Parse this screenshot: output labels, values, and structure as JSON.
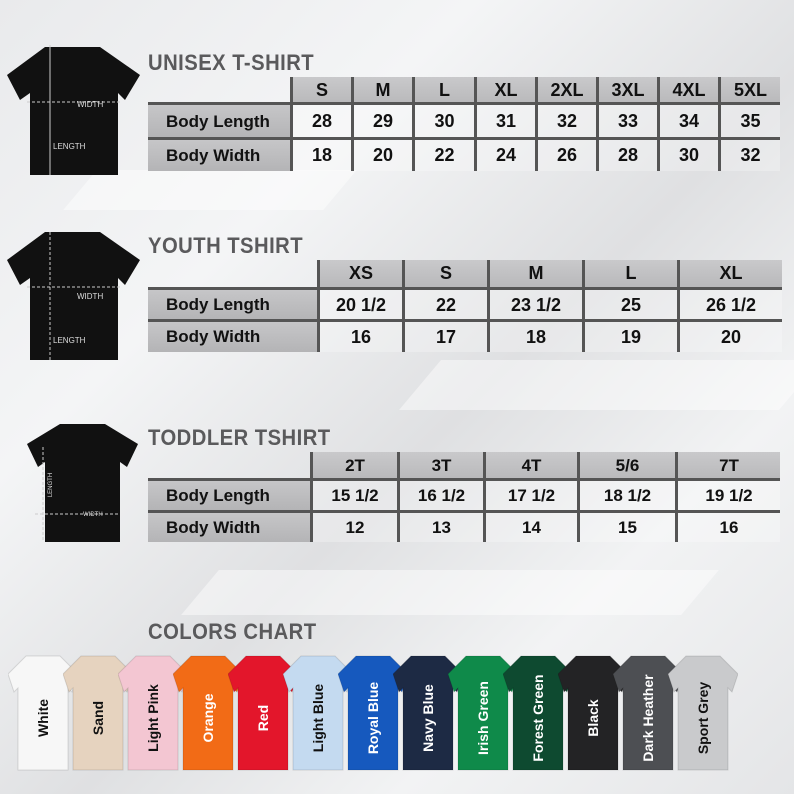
{
  "unisex": {
    "title": "UNISEX T-SHIRT",
    "diagram_labels": {
      "width": "WIDTH",
      "length": "LENGTH"
    },
    "sizes": [
      "S",
      "M",
      "L",
      "XL",
      "2XL",
      "3XL",
      "4XL",
      "5XL"
    ],
    "rows": [
      {
        "label": "Body Length",
        "values": [
          "28",
          "29",
          "30",
          "31",
          "32",
          "33",
          "34",
          "35"
        ]
      },
      {
        "label": "Body Width",
        "values": [
          "18",
          "20",
          "22",
          "24",
          "26",
          "28",
          "30",
          "32"
        ]
      }
    ]
  },
  "youth": {
    "title": "YOUTH TSHIRT",
    "diagram_labels": {
      "width": "WIDTH",
      "length": "LENGTH"
    },
    "sizes": [
      "XS",
      "S",
      "M",
      "L",
      "XL"
    ],
    "rows": [
      {
        "label": "Body Length",
        "values": [
          "20 1/2",
          "22",
          "23 1/2",
          "25",
          "26 1/2"
        ]
      },
      {
        "label": "Body Width",
        "values": [
          "16",
          "17",
          "18",
          "19",
          "20"
        ]
      }
    ]
  },
  "toddler": {
    "title": "TODDLER TSHIRT",
    "diagram_labels": {
      "width": "WIDTH",
      "length": "LENGTH"
    },
    "sizes": [
      "2T",
      "3T",
      "4T",
      "5/6",
      "7T"
    ],
    "rows": [
      {
        "label": "Body Length",
        "values": [
          "15 1/2",
          "16 1/2",
          "17 1/2",
          "18 1/2",
          "19 1/2"
        ]
      },
      {
        "label": "Body Width",
        "values": [
          "12",
          "13",
          "14",
          "15",
          "16"
        ]
      }
    ]
  },
  "colors": {
    "title": "COLORS CHART",
    "items": [
      {
        "name": "White",
        "color": "#f7f7f7",
        "text": "#111111"
      },
      {
        "name": "Sand",
        "color": "#e6d3bf",
        "text": "#111111"
      },
      {
        "name": "Light Pink",
        "color": "#f3c6d2",
        "text": "#111111"
      },
      {
        "name": "Orange",
        "color": "#f26b16",
        "text": "#ffffff"
      },
      {
        "name": "Red",
        "color": "#e3162b",
        "text": "#ffffff"
      },
      {
        "name": "Light Blue",
        "color": "#c4daf0",
        "text": "#111111"
      },
      {
        "name": "Royal Blue",
        "color": "#1659be",
        "text": "#ffffff"
      },
      {
        "name": "Navy Blue",
        "color": "#1d2a44",
        "text": "#ffffff"
      },
      {
        "name": "Irish Green",
        "color": "#0f8a4a",
        "text": "#ffffff"
      },
      {
        "name": "Forest Green",
        "color": "#0e4a30",
        "text": "#ffffff"
      },
      {
        "name": "Black",
        "color": "#232325",
        "text": "#ffffff"
      },
      {
        "name": "Dark Heather",
        "color": "#4d4f53",
        "text": "#ffffff"
      },
      {
        "name": "Sport Grey",
        "color": "#c9cacc",
        "text": "#111111"
      }
    ]
  }
}
